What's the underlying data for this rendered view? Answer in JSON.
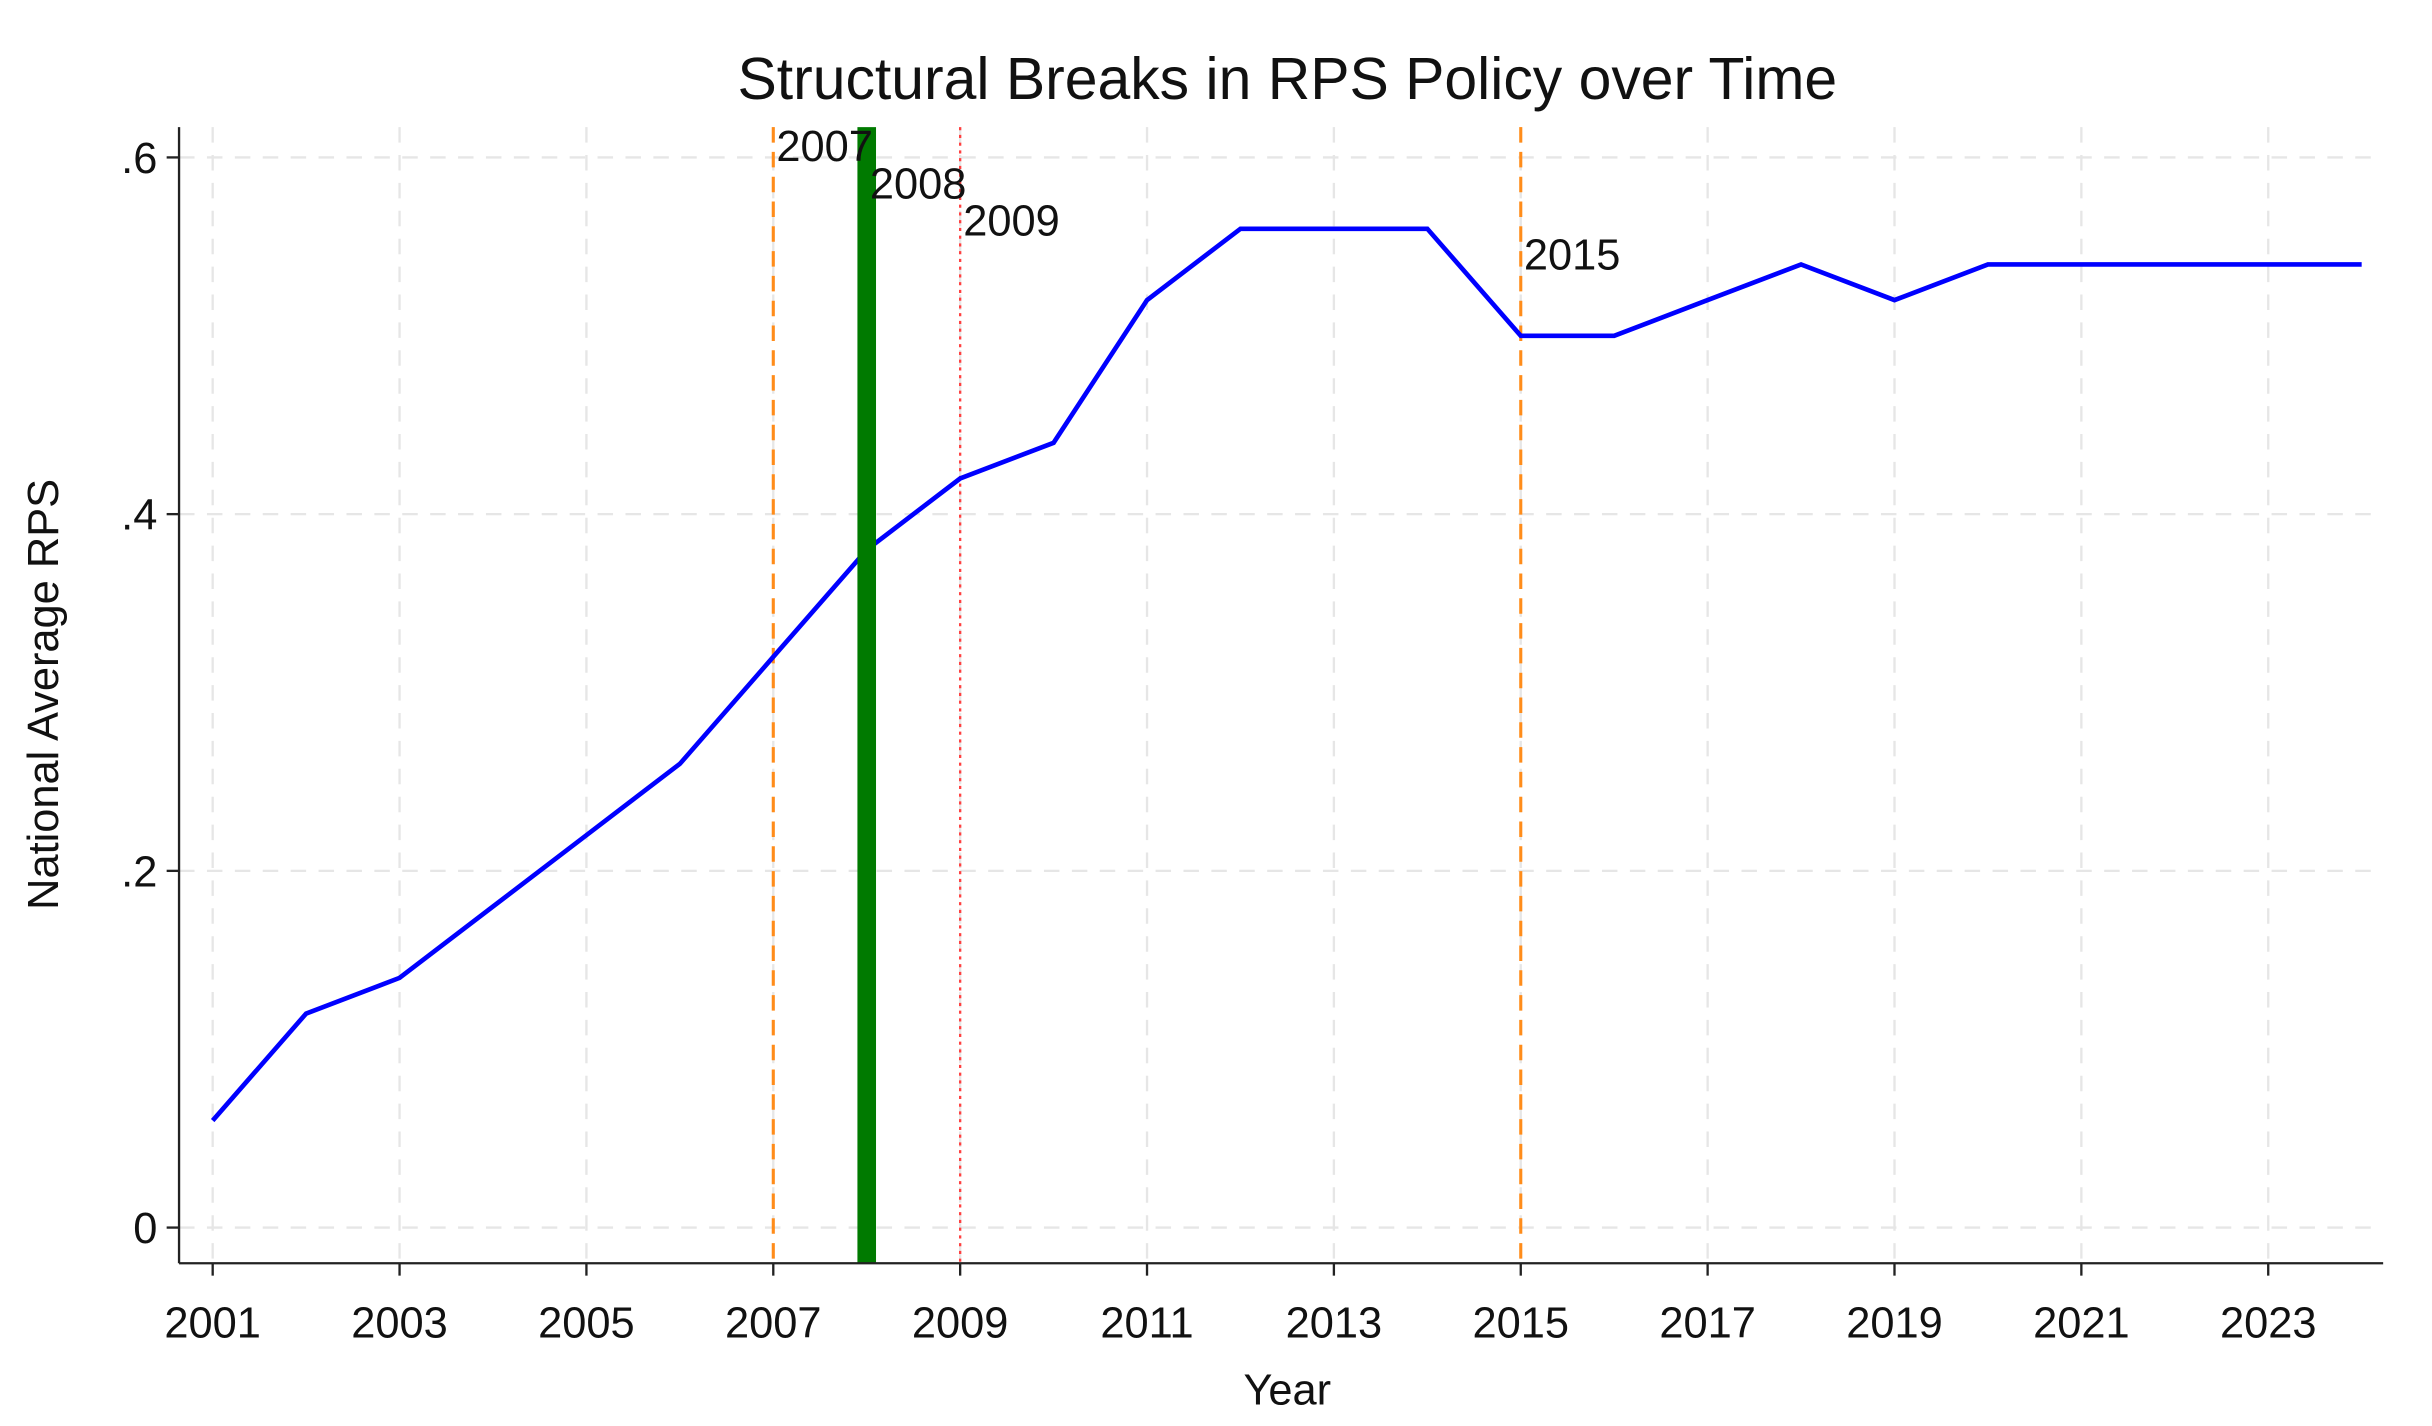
{
  "chart_data": {
    "type": "line",
    "title": "Structural Breaks in RPS Policy over Time",
    "x_label": "Year",
    "y_label": "National Average RPS",
    "x": [
      2001,
      2002,
      2003,
      2004,
      2005,
      2006,
      2007,
      2008,
      2009,
      2010,
      2011,
      2012,
      2013,
      2014,
      2015,
      2016,
      2017,
      2018,
      2019,
      2020,
      2021,
      2022,
      2023,
      2024
    ],
    "series": [
      {
        "color": "#0000ff",
        "values": [
          0.06,
          0.12,
          0.14,
          0.18,
          0.22,
          0.26,
          0.32,
          0.38,
          0.42,
          0.44,
          0.52,
          0.56,
          0.56,
          0.56,
          0.5,
          0.5,
          0.52,
          0.54,
          0.52,
          0.54,
          0.54,
          0.54,
          0.54,
          0.54
        ]
      }
    ],
    "breaks": [
      {
        "x": 2007,
        "color": "#ff8c1a",
        "style": "dashed"
      },
      {
        "x": 2008,
        "color": "#007a00",
        "style": "thick"
      },
      {
        "x": 2009,
        "color": "#ff4040",
        "style": "dotted"
      },
      {
        "x": 2015,
        "color": "#ff8c1a",
        "style": "dashed"
      }
    ],
    "xlim": [
      2000.64,
      2024.23
    ],
    "ylim": [
      -0.02,
      0.617
    ],
    "xticks": [
      2001,
      2003,
      2005,
      2007,
      2009,
      2011,
      2013,
      2015,
      2017,
      2019,
      2021,
      2023
    ],
    "yticks": [
      0,
      {
        "value": 0.2,
        "label": ".2"
      },
      {
        "value": 0.4,
        "label": ".4"
      },
      {
        "value": 0.6,
        "label": ".6"
      }
    ],
    "grid": true
  }
}
